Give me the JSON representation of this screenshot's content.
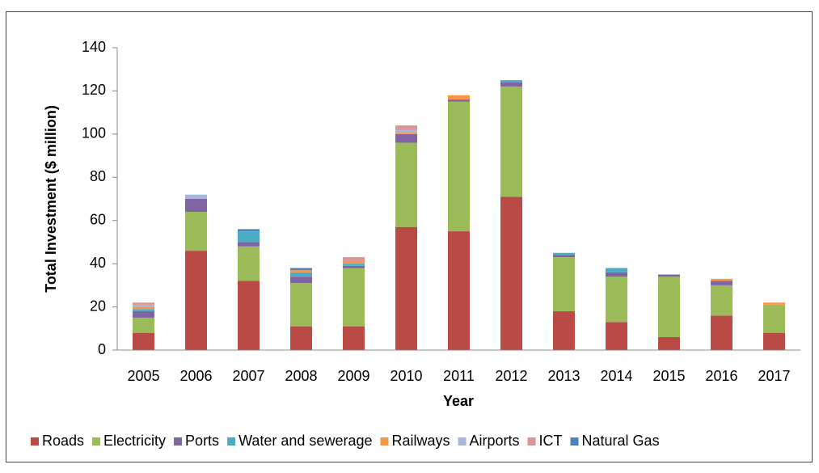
{
  "chart_data": {
    "type": "stacked_bar",
    "xlabel": "Year",
    "ylabel": "Total Investment ($ million)",
    "categories": [
      "2005",
      "2006",
      "2007",
      "2008",
      "2009",
      "2010",
      "2011",
      "2012",
      "2013",
      "2014",
      "2015",
      "2016",
      "2017"
    ],
    "series": [
      {
        "name": "Roads",
        "color": "#b94a45",
        "values": [
          8,
          46,
          32,
          11,
          11,
          57,
          55,
          71,
          18,
          13,
          6,
          16,
          8
        ]
      },
      {
        "name": "Electricity",
        "color": "#9bbb59",
        "values": [
          7,
          18,
          16,
          20,
          27,
          39,
          60,
          51,
          25,
          21,
          28,
          14,
          13
        ]
      },
      {
        "name": "Ports",
        "color": "#8064a2",
        "values": [
          3,
          6,
          2,
          3,
          1,
          4,
          1,
          2,
          1,
          2,
          1,
          2,
          0
        ]
      },
      {
        "name": "Water and sewerage",
        "color": "#4bacc6",
        "values": [
          1,
          0,
          5,
          2,
          1,
          0,
          0,
          1,
          1,
          2,
          0,
          0,
          0
        ]
      },
      {
        "name": "Railways",
        "color": "#f79646",
        "values": [
          1,
          0,
          0,
          1,
          1,
          1,
          2,
          0,
          0,
          0,
          0,
          1,
          1
        ]
      },
      {
        "name": "Airports",
        "color": "#a5b8dc",
        "values": [
          1,
          2,
          0,
          0,
          0,
          1,
          0,
          0,
          0,
          0,
          0,
          0,
          0
        ]
      },
      {
        "name": "ICT",
        "color": "#d99694",
        "values": [
          1,
          0,
          0,
          0,
          2,
          2,
          0,
          0,
          0,
          0,
          0,
          0,
          0
        ]
      },
      {
        "name": "Natural Gas",
        "color": "#4f81bd",
        "values": [
          0,
          0,
          1,
          1,
          0,
          0,
          0,
          0,
          0,
          0,
          0,
          0,
          0
        ]
      }
    ],
    "ylim": [
      0,
      140
    ],
    "yticks": [
      0,
      20,
      40,
      60,
      80,
      100,
      120,
      140
    ],
    "grid": false,
    "legend": "bottom"
  }
}
